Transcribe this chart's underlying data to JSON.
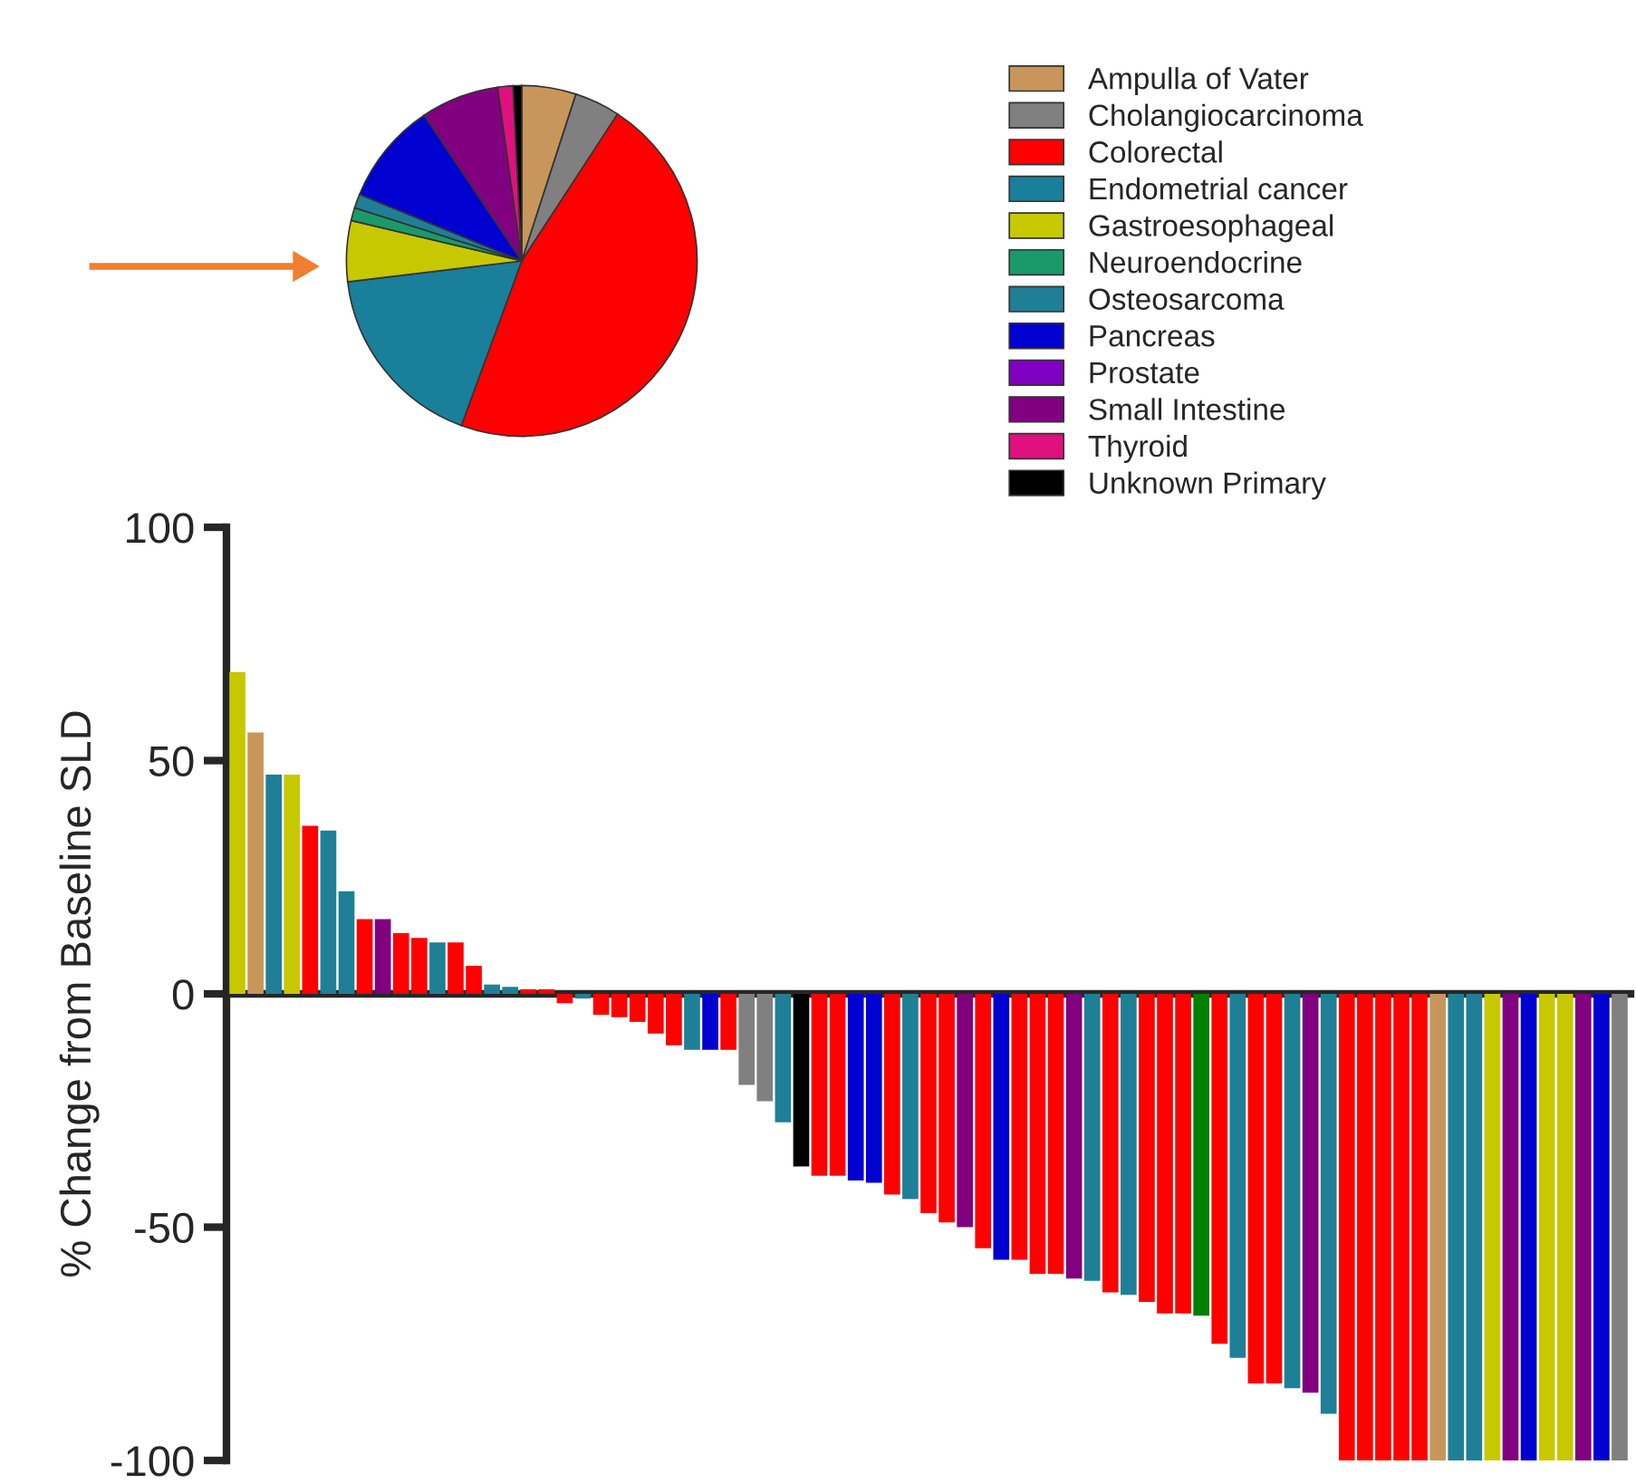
{
  "chart_data": [
    {
      "type": "pie",
      "categories": [
        "Ampulla of Vater",
        "Cholangiocarcinoma",
        "Colorectal",
        "Endometrial cancer",
        "Gastroesophageal",
        "Neuroendocrine",
        "Osteosarcoma",
        "Pancreas",
        "Prostate",
        "Small Intestine",
        "Thyroid",
        "Unknown Primary"
      ],
      "values": [
        5,
        4.2,
        46.4,
        17.5,
        5.6,
        1.2,
        1.3,
        9.4,
        0,
        7.2,
        1.4,
        0.8
      ],
      "colors": [
        "#c8965a",
        "#808080",
        "#ff0000",
        "#1a7f9a",
        "#c8c800",
        "#1a9a6a",
        "#1f7f96",
        "#0000d0",
        "#7f00c0",
        "#800080",
        "#e0107f",
        "#000000"
      ],
      "legend": "right"
    },
    {
      "type": "bar",
      "ylabel": "% Change from Baseline SLD",
      "categories": [
        null,
        null,
        null,
        null,
        null,
        null,
        null,
        null,
        null,
        null,
        null,
        null,
        null,
        null,
        null,
        null,
        null,
        null,
        null,
        null,
        null,
        null,
        null,
        null,
        null,
        null,
        null,
        null,
        null,
        null,
        null,
        null,
        null,
        null,
        null,
        null,
        null,
        null,
        null,
        null,
        null,
        null,
        null,
        null,
        null,
        null,
        null,
        null,
        null,
        null,
        null,
        null,
        null,
        null,
        null,
        null,
        null,
        null,
        null,
        null,
        null,
        null,
        null,
        null,
        null,
        null,
        null,
        null,
        null,
        null,
        null,
        null,
        null,
        null,
        null,
        null,
        null
      ],
      "values": [
        69,
        56,
        47,
        47,
        36,
        35,
        22,
        16,
        16,
        13,
        12,
        11,
        11,
        6,
        2,
        1.5,
        1,
        1,
        -2,
        -1,
        -4.5,
        -5,
        -6,
        -8.5,
        -11,
        -12,
        -12,
        -12,
        -19.5,
        -23,
        -27.5,
        -37,
        -39,
        -39,
        -40,
        -40.5,
        -43,
        -44,
        -47,
        -49,
        -50,
        -54.5,
        -57,
        -57,
        -60,
        -60,
        -61,
        -61.5,
        -64,
        -64.5,
        -66,
        -68.5,
        -68.5,
        -69,
        -75,
        -78,
        -83.5,
        -83.5,
        -84.5,
        -85.5,
        -90,
        -100,
        -100,
        -100,
        -100,
        -100,
        -100,
        -100,
        -100,
        -100,
        -100,
        -100,
        -100,
        -100,
        -100,
        -100,
        -100
      ],
      "colors": [
        "#c8c800",
        "#c8965a",
        "#1f7f96",
        "#c8c800",
        "#ff0000",
        "#1f7f96",
        "#1f7f96",
        "#ff0000",
        "#800080",
        "#ff0000",
        "#ff0000",
        "#1f7f96",
        "#ff0000",
        "#ff0000",
        "#1f7f96",
        "#1f7f96",
        "#ff0000",
        "#ff0000",
        "#ff0000",
        "#1f7f96",
        "#ff0000",
        "#ff0000",
        "#ff0000",
        "#ff0000",
        "#ff0000",
        "#1f7f96",
        "#0000d0",
        "#ff0000",
        "#808080",
        "#808080",
        "#1f7f96",
        "#000000",
        "#ff0000",
        "#ff0000",
        "#0000d0",
        "#0000d0",
        "#ff0000",
        "#1f7f96",
        "#ff0000",
        "#ff0000",
        "#800080",
        "#ff0000",
        "#0000d0",
        "#ff0000",
        "#ff0000",
        "#ff0000",
        "#800080",
        "#1f7f96",
        "#ff0000",
        "#1f7f96",
        "#ff0000",
        "#ff0000",
        "#ff0000",
        "#008000",
        "#ff0000",
        "#1f7f96",
        "#ff0000",
        "#ff0000",
        "#1f7f96",
        "#800080",
        "#1f7f96",
        "#ff0000",
        "#ff0000",
        "#ff0000",
        "#ff0000",
        "#ff0000",
        "#c8965a",
        "#1f7f96",
        "#1f7f96",
        "#c8c800",
        "#800080",
        "#0000d0",
        "#c8c800",
        "#c8c800",
        "#800080",
        "#0000d0",
        "#808080"
      ],
      "ylim": [
        -100,
        100
      ],
      "yticks": [
        -100,
        -50,
        0,
        50,
        100
      ]
    }
  ]
}
